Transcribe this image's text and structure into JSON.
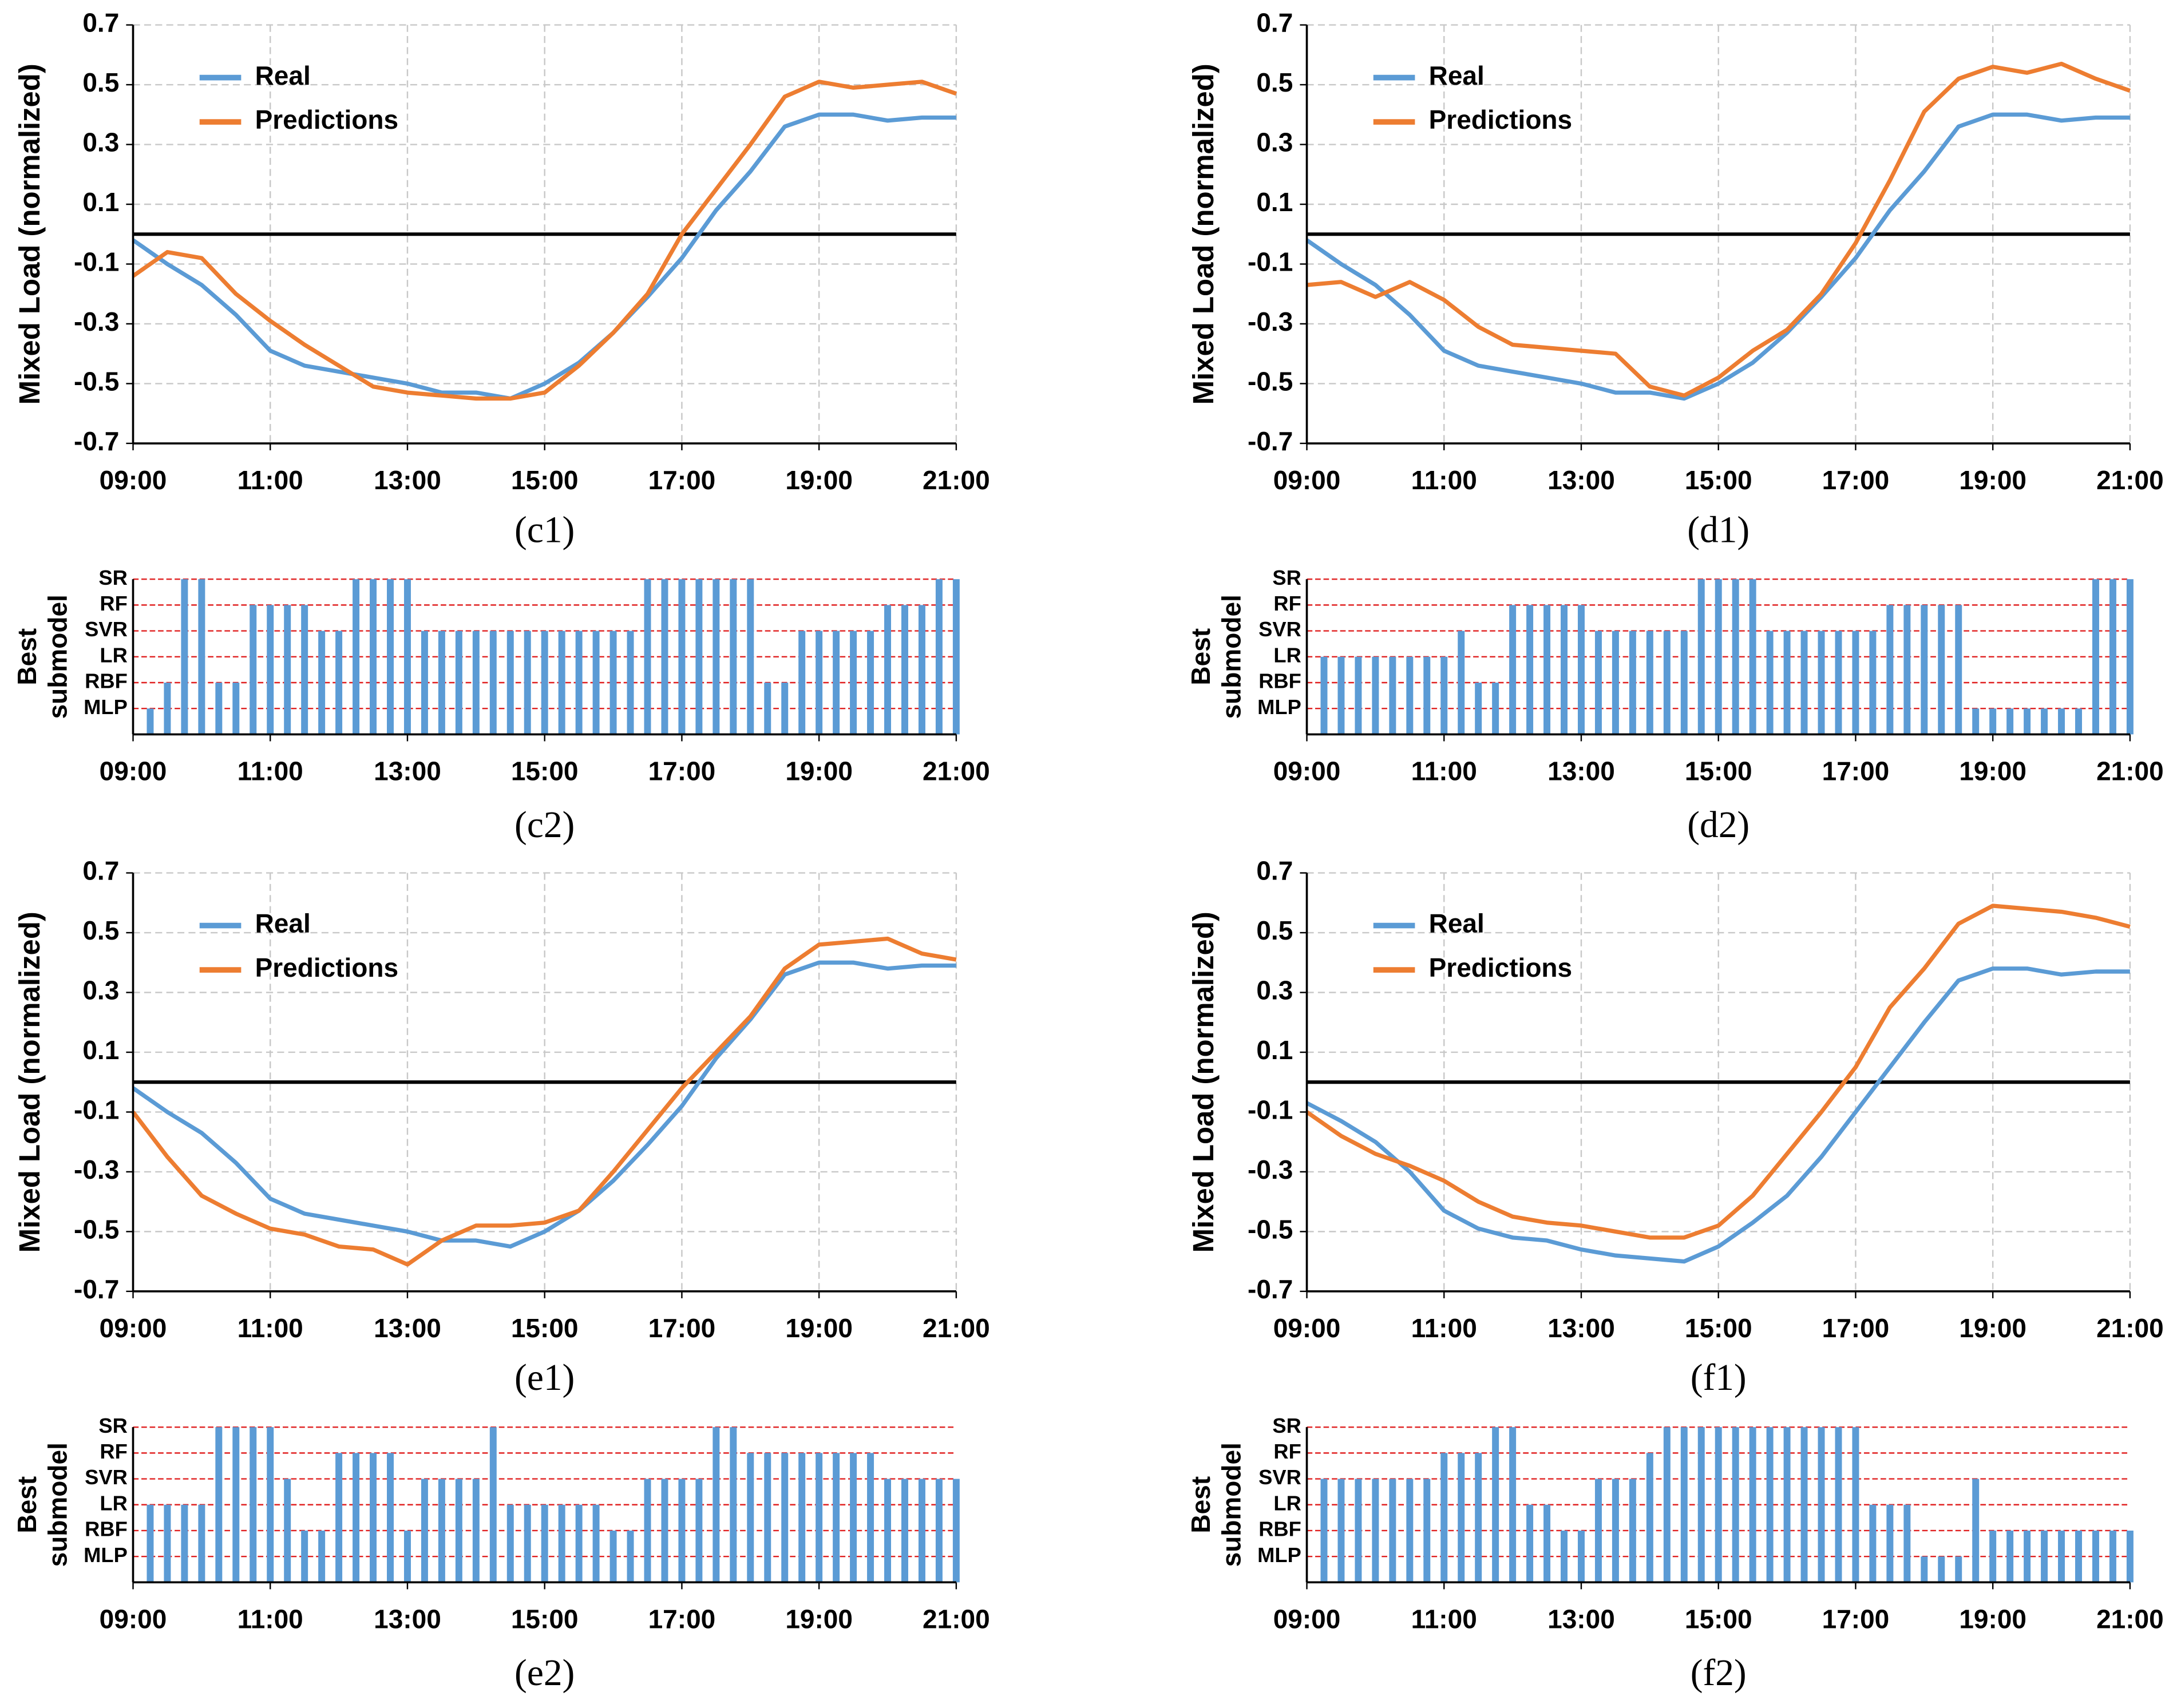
{
  "chart_data": [
    {
      "type": "line",
      "label": "(c1)",
      "ylabel": "Mixed Load (normalized)",
      "legend": "upper-left",
      "grid": true,
      "reference_line": 0,
      "xlim": [
        9,
        21
      ],
      "ylim": [
        -0.7,
        0.7
      ],
      "xticks": [
        {
          "value": 9,
          "label": "09:00"
        },
        {
          "value": 11,
          "label": "11:00"
        },
        {
          "value": 13,
          "label": "13:00"
        },
        {
          "value": 15,
          "label": "15:00"
        },
        {
          "value": 17,
          "label": "17:00"
        },
        {
          "value": 19,
          "label": "19:00"
        },
        {
          "value": 21,
          "label": "21:00"
        }
      ],
      "yticks": [
        -0.7,
        -0.5,
        -0.3,
        -0.1,
        0.1,
        0.3,
        0.5,
        0.7
      ],
      "x": [
        9,
        9.5,
        10,
        10.5,
        11,
        11.5,
        12,
        12.5,
        13,
        13.5,
        14,
        14.5,
        15,
        15.5,
        16,
        16.5,
        17,
        17.5,
        18,
        18.5,
        19,
        19.5,
        20,
        20.5,
        21
      ],
      "series": [
        {
          "name": "Real",
          "color": "#5b9bd5",
          "values": [
            -0.02,
            -0.1,
            -0.17,
            -0.27,
            -0.39,
            -0.44,
            -0.46,
            -0.48,
            -0.5,
            -0.53,
            -0.53,
            -0.55,
            -0.5,
            -0.43,
            -0.33,
            -0.21,
            -0.08,
            0.08,
            0.21,
            0.36,
            0.4,
            0.4,
            0.38,
            0.39,
            0.39
          ]
        },
        {
          "name": "Predictions",
          "color": "#ed7d31",
          "values": [
            -0.14,
            -0.06,
            -0.08,
            -0.2,
            -0.29,
            -0.37,
            -0.44,
            -0.51,
            -0.53,
            -0.54,
            -0.55,
            -0.55,
            -0.53,
            -0.44,
            -0.33,
            -0.2,
            0.0,
            0.15,
            0.3,
            0.46,
            0.51,
            0.49,
            0.5,
            0.51,
            0.47
          ]
        }
      ]
    },
    {
      "type": "line",
      "label": "(d1)",
      "ylabel": "Mixed Load (normalized)",
      "legend": "upper-left",
      "grid": true,
      "reference_line": 0,
      "xlim": [
        9,
        21
      ],
      "ylim": [
        -0.7,
        0.7
      ],
      "xticks": [
        {
          "value": 9,
          "label": "09:00"
        },
        {
          "value": 11,
          "label": "11:00"
        },
        {
          "value": 13,
          "label": "13:00"
        },
        {
          "value": 15,
          "label": "15:00"
        },
        {
          "value": 17,
          "label": "17:00"
        },
        {
          "value": 19,
          "label": "19:00"
        },
        {
          "value": 21,
          "label": "21:00"
        }
      ],
      "yticks": [
        -0.7,
        -0.5,
        -0.3,
        -0.1,
        0.1,
        0.3,
        0.5,
        0.7
      ],
      "x": [
        9,
        9.5,
        10,
        10.5,
        11,
        11.5,
        12,
        12.5,
        13,
        13.5,
        14,
        14.5,
        15,
        15.5,
        16,
        16.5,
        17,
        17.5,
        18,
        18.5,
        19,
        19.5,
        20,
        20.5,
        21
      ],
      "series": [
        {
          "name": "Real",
          "color": "#5b9bd5",
          "values": [
            -0.02,
            -0.1,
            -0.17,
            -0.27,
            -0.39,
            -0.44,
            -0.46,
            -0.48,
            -0.5,
            -0.53,
            -0.53,
            -0.55,
            -0.5,
            -0.43,
            -0.33,
            -0.21,
            -0.08,
            0.08,
            0.21,
            0.36,
            0.4,
            0.4,
            0.38,
            0.39,
            0.39
          ]
        },
        {
          "name": "Predictions",
          "color": "#ed7d31",
          "values": [
            -0.17,
            -0.16,
            -0.21,
            -0.16,
            -0.22,
            -0.31,
            -0.37,
            -0.38,
            -0.39,
            -0.4,
            -0.51,
            -0.54,
            -0.48,
            -0.39,
            -0.32,
            -0.2,
            -0.03,
            0.18,
            0.41,
            0.52,
            0.56,
            0.54,
            0.57,
            0.52,
            0.48
          ]
        }
      ]
    },
    {
      "type": "bar",
      "label": "(c2)",
      "ylabel": [
        "Best",
        "submodel"
      ],
      "color": "#5b9bd5",
      "grid": true,
      "xlim": [
        9,
        21
      ],
      "ylim": [
        0,
        6
      ],
      "xticks": [
        {
          "value": 9,
          "label": "09:00"
        },
        {
          "value": 11,
          "label": "11:00"
        },
        {
          "value": 13,
          "label": "13:00"
        },
        {
          "value": 15,
          "label": "15:00"
        },
        {
          "value": 17,
          "label": "17:00"
        },
        {
          "value": 19,
          "label": "19:00"
        },
        {
          "value": 21,
          "label": "21:00"
        }
      ],
      "yticks": [
        {
          "value": 1,
          "label": "MLP"
        },
        {
          "value": 2,
          "label": "RBF"
        },
        {
          "value": 3,
          "label": "LR"
        },
        {
          "value": 4,
          "label": "SVR"
        },
        {
          "value": 5,
          "label": "RF"
        },
        {
          "value": 6,
          "label": "SR"
        }
      ],
      "x": [
        9.25,
        9.5,
        9.75,
        10,
        10.25,
        10.5,
        10.75,
        11,
        11.25,
        11.5,
        11.75,
        12,
        12.25,
        12.5,
        12.75,
        13,
        13.25,
        13.5,
        13.75,
        14,
        14.25,
        14.5,
        14.75,
        15,
        15.25,
        15.5,
        15.75,
        16,
        16.25,
        16.5,
        16.75,
        17,
        17.25,
        17.5,
        17.75,
        18,
        18.25,
        18.5,
        18.75,
        19,
        19.25,
        19.5,
        19.75,
        20,
        20.25,
        20.5,
        20.75,
        21
      ],
      "values": [
        1,
        2,
        6,
        6,
        2,
        2,
        5,
        5,
        5,
        5,
        4,
        4,
        6,
        6,
        6,
        6,
        4,
        4,
        4,
        4,
        4,
        4,
        4,
        4,
        4,
        4,
        4,
        4,
        4,
        6,
        6,
        6,
        6,
        6,
        6,
        6,
        2,
        2,
        4,
        4,
        4,
        4,
        4,
        5,
        5,
        5,
        6,
        6
      ]
    },
    {
      "type": "bar",
      "label": "(d2)",
      "ylabel": [
        "Best",
        "submodel"
      ],
      "color": "#5b9bd5",
      "grid": true,
      "xlim": [
        9,
        21
      ],
      "ylim": [
        0,
        6
      ],
      "xticks": [
        {
          "value": 9,
          "label": "09:00"
        },
        {
          "value": 11,
          "label": "11:00"
        },
        {
          "value": 13,
          "label": "13:00"
        },
        {
          "value": 15,
          "label": "15:00"
        },
        {
          "value": 17,
          "label": "17:00"
        },
        {
          "value": 19,
          "label": "19:00"
        },
        {
          "value": 21,
          "label": "21:00"
        }
      ],
      "yticks": [
        {
          "value": 1,
          "label": "MLP"
        },
        {
          "value": 2,
          "label": "RBF"
        },
        {
          "value": 3,
          "label": "LR"
        },
        {
          "value": 4,
          "label": "SVR"
        },
        {
          "value": 5,
          "label": "RF"
        },
        {
          "value": 6,
          "label": "SR"
        }
      ],
      "x": [
        9.25,
        9.5,
        9.75,
        10,
        10.25,
        10.5,
        10.75,
        11,
        11.25,
        11.5,
        11.75,
        12,
        12.25,
        12.5,
        12.75,
        13,
        13.25,
        13.5,
        13.75,
        14,
        14.25,
        14.5,
        14.75,
        15,
        15.25,
        15.5,
        15.75,
        16,
        16.25,
        16.5,
        16.75,
        17,
        17.25,
        17.5,
        17.75,
        18,
        18.25,
        18.5,
        18.75,
        19,
        19.25,
        19.5,
        19.75,
        20,
        20.25,
        20.5,
        20.75,
        21
      ],
      "values": [
        3,
        3,
        3,
        3,
        3,
        3,
        3,
        3,
        4,
        2,
        2,
        5,
        5,
        5,
        5,
        5,
        4,
        4,
        4,
        4,
        4,
        4,
        6,
        6,
        6,
        6,
        4,
        4,
        4,
        4,
        4,
        4,
        4,
        5,
        5,
        5,
        5,
        5,
        1,
        1,
        1,
        1,
        1,
        1,
        1,
        6,
        6,
        6
      ]
    },
    {
      "type": "line",
      "label": "(e1)",
      "ylabel": "Mixed Load (normalized)",
      "legend": "upper-left",
      "grid": true,
      "reference_line": 0,
      "xlim": [
        9,
        21
      ],
      "ylim": [
        -0.7,
        0.7
      ],
      "xticks": [
        {
          "value": 9,
          "label": "09:00"
        },
        {
          "value": 11,
          "label": "11:00"
        },
        {
          "value": 13,
          "label": "13:00"
        },
        {
          "value": 15,
          "label": "15:00"
        },
        {
          "value": 17,
          "label": "17:00"
        },
        {
          "value": 19,
          "label": "19:00"
        },
        {
          "value": 21,
          "label": "21:00"
        }
      ],
      "yticks": [
        -0.7,
        -0.5,
        -0.3,
        -0.1,
        0.1,
        0.3,
        0.5,
        0.7
      ],
      "x": [
        9,
        9.5,
        10,
        10.5,
        11,
        11.5,
        12,
        12.5,
        13,
        13.5,
        14,
        14.5,
        15,
        15.5,
        16,
        16.5,
        17,
        17.5,
        18,
        18.5,
        19,
        19.5,
        20,
        20.5,
        21
      ],
      "series": [
        {
          "name": "Real",
          "color": "#5b9bd5",
          "values": [
            -0.02,
            -0.1,
            -0.17,
            -0.27,
            -0.39,
            -0.44,
            -0.46,
            -0.48,
            -0.5,
            -0.53,
            -0.53,
            -0.55,
            -0.5,
            -0.43,
            -0.33,
            -0.21,
            -0.08,
            0.08,
            0.21,
            0.36,
            0.4,
            0.4,
            0.38,
            0.39,
            0.39
          ]
        },
        {
          "name": "Predictions",
          "color": "#ed7d31",
          "values": [
            -0.1,
            -0.25,
            -0.38,
            -0.44,
            -0.49,
            -0.51,
            -0.55,
            -0.56,
            -0.61,
            -0.53,
            -0.48,
            -0.48,
            -0.47,
            -0.43,
            -0.3,
            -0.16,
            -0.02,
            0.1,
            0.22,
            0.38,
            0.46,
            0.47,
            0.48,
            0.43,
            0.41
          ]
        }
      ]
    },
    {
      "type": "line",
      "label": "(f1)",
      "ylabel": "Mixed Load (normalized)",
      "legend": "upper-left",
      "grid": true,
      "reference_line": 0,
      "xlim": [
        9,
        21
      ],
      "ylim": [
        -0.7,
        0.7
      ],
      "xticks": [
        {
          "value": 9,
          "label": "09:00"
        },
        {
          "value": 11,
          "label": "11:00"
        },
        {
          "value": 13,
          "label": "13:00"
        },
        {
          "value": 15,
          "label": "15:00"
        },
        {
          "value": 17,
          "label": "17:00"
        },
        {
          "value": 19,
          "label": "19:00"
        },
        {
          "value": 21,
          "label": "21:00"
        }
      ],
      "yticks": [
        -0.7,
        -0.5,
        -0.3,
        -0.1,
        0.1,
        0.3,
        0.5,
        0.7
      ],
      "x": [
        9,
        9.5,
        10,
        10.5,
        11,
        11.5,
        12,
        12.5,
        13,
        13.5,
        14,
        14.5,
        15,
        15.5,
        16,
        16.5,
        17,
        17.5,
        18,
        18.5,
        19,
        19.5,
        20,
        20.5,
        21
      ],
      "series": [
        {
          "name": "Real",
          "color": "#5b9bd5",
          "values": [
            -0.07,
            -0.13,
            -0.2,
            -0.3,
            -0.43,
            -0.49,
            -0.52,
            -0.53,
            -0.56,
            -0.58,
            -0.59,
            -0.6,
            -0.55,
            -0.47,
            -0.38,
            -0.25,
            -0.1,
            0.05,
            0.2,
            0.34,
            0.38,
            0.38,
            0.36,
            0.37,
            0.37
          ]
        },
        {
          "name": "Predictions",
          "color": "#ed7d31",
          "values": [
            -0.1,
            -0.18,
            -0.24,
            -0.28,
            -0.33,
            -0.4,
            -0.45,
            -0.47,
            -0.48,
            -0.5,
            -0.52,
            -0.52,
            -0.48,
            -0.38,
            -0.24,
            -0.1,
            0.05,
            0.25,
            0.38,
            0.53,
            0.59,
            0.58,
            0.57,
            0.55,
            0.52
          ]
        }
      ]
    },
    {
      "type": "bar",
      "label": "(e2)",
      "ylabel": [
        "Best",
        "submodel"
      ],
      "color": "#5b9bd5",
      "grid": true,
      "xlim": [
        9,
        21
      ],
      "ylim": [
        0,
        6
      ],
      "xticks": [
        {
          "value": 9,
          "label": "09:00"
        },
        {
          "value": 11,
          "label": "11:00"
        },
        {
          "value": 13,
          "label": "13:00"
        },
        {
          "value": 15,
          "label": "15:00"
        },
        {
          "value": 17,
          "label": "17:00"
        },
        {
          "value": 19,
          "label": "19:00"
        },
        {
          "value": 21,
          "label": "21:00"
        }
      ],
      "yticks": [
        {
          "value": 1,
          "label": "MLP"
        },
        {
          "value": 2,
          "label": "RBF"
        },
        {
          "value": 3,
          "label": "LR"
        },
        {
          "value": 4,
          "label": "SVR"
        },
        {
          "value": 5,
          "label": "RF"
        },
        {
          "value": 6,
          "label": "SR"
        }
      ],
      "x": [
        9.25,
        9.5,
        9.75,
        10,
        10.25,
        10.5,
        10.75,
        11,
        11.25,
        11.5,
        11.75,
        12,
        12.25,
        12.5,
        12.75,
        13,
        13.25,
        13.5,
        13.75,
        14,
        14.25,
        14.5,
        14.75,
        15,
        15.25,
        15.5,
        15.75,
        16,
        16.25,
        16.5,
        16.75,
        17,
        17.25,
        17.5,
        17.75,
        18,
        18.25,
        18.5,
        18.75,
        19,
        19.25,
        19.5,
        19.75,
        20,
        20.25,
        20.5,
        20.75,
        21
      ],
      "values": [
        3,
        3,
        3,
        3,
        6,
        6,
        6,
        6,
        4,
        2,
        2,
        5,
        5,
        5,
        5,
        2,
        4,
        4,
        4,
        4,
        6,
        3,
        3,
        3,
        3,
        3,
        3,
        2,
        2,
        4,
        4,
        4,
        4,
        6,
        6,
        5,
        5,
        5,
        5,
        5,
        5,
        5,
        5,
        4,
        4,
        4,
        4,
        4
      ]
    },
    {
      "type": "bar",
      "label": "(f2)",
      "ylabel": [
        "Best",
        "submodel"
      ],
      "color": "#5b9bd5",
      "grid": true,
      "xlim": [
        9,
        21
      ],
      "ylim": [
        0,
        6
      ],
      "xticks": [
        {
          "value": 9,
          "label": "09:00"
        },
        {
          "value": 11,
          "label": "11:00"
        },
        {
          "value": 13,
          "label": "13:00"
        },
        {
          "value": 15,
          "label": "15:00"
        },
        {
          "value": 17,
          "label": "17:00"
        },
        {
          "value": 19,
          "label": "19:00"
        },
        {
          "value": 21,
          "label": "21:00"
        }
      ],
      "yticks": [
        {
          "value": 1,
          "label": "MLP"
        },
        {
          "value": 2,
          "label": "RBF"
        },
        {
          "value": 3,
          "label": "LR"
        },
        {
          "value": 4,
          "label": "SVR"
        },
        {
          "value": 5,
          "label": "RF"
        },
        {
          "value": 6,
          "label": "SR"
        }
      ],
      "x": [
        9.25,
        9.5,
        9.75,
        10,
        10.25,
        10.5,
        10.75,
        11,
        11.25,
        11.5,
        11.75,
        12,
        12.25,
        12.5,
        12.75,
        13,
        13.25,
        13.5,
        13.75,
        14,
        14.25,
        14.5,
        14.75,
        15,
        15.25,
        15.5,
        15.75,
        16,
        16.25,
        16.5,
        16.75,
        17,
        17.25,
        17.5,
        17.75,
        18,
        18.25,
        18.5,
        18.75,
        19,
        19.25,
        19.5,
        19.75,
        20,
        20.25,
        20.5,
        20.75,
        21
      ],
      "values": [
        4,
        4,
        4,
        4,
        4,
        4,
        4,
        5,
        5,
        5,
        6,
        6,
        3,
        3,
        2,
        2,
        4,
        4,
        4,
        5,
        6,
        6,
        6,
        6,
        6,
        6,
        6,
        6,
        6,
        6,
        6,
        6,
        3,
        3,
        3,
        1,
        1,
        1,
        4,
        2,
        2,
        2,
        2,
        2,
        2,
        2,
        2,
        2
      ]
    }
  ]
}
